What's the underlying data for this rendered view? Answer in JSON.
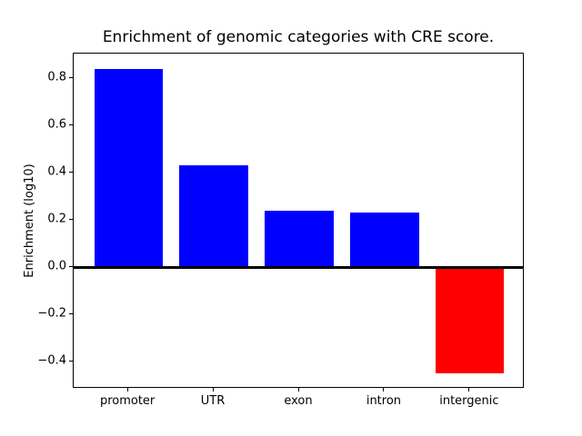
{
  "figure": {
    "background": "#ffffff",
    "text_color": "#000000"
  },
  "chart_data": {
    "type": "bar",
    "title": "Enrichment of genomic categories with CRE score.",
    "xlabel": "",
    "ylabel": "Enrichment (log10)",
    "categories": [
      "promoter",
      "UTR",
      "exon",
      "intron",
      "intergenic"
    ],
    "values": [
      0.84,
      0.43,
      0.24,
      0.23,
      -0.45
    ],
    "bar_colors": [
      "#0000ff",
      "#0000ff",
      "#0000ff",
      "#0000ff",
      "#ff0000"
    ],
    "positive_color": "#0000ff",
    "negative_color": "#ff0000",
    "bar_width": 0.8,
    "ylim": [
      -0.515,
      0.905
    ],
    "xlim": [
      -0.64,
      4.64
    ],
    "yticks": [
      {
        "value": 0.8,
        "label": "0.8"
      },
      {
        "value": 0.6,
        "label": "0.6"
      },
      {
        "value": 0.4,
        "label": "0.4"
      },
      {
        "value": 0.2,
        "label": "0.2"
      },
      {
        "value": 0.0,
        "label": "0.0"
      },
      {
        "value": -0.2,
        "label": "−0.2"
      },
      {
        "value": -0.4,
        "label": "−0.4"
      }
    ],
    "zero_line": {
      "show": true,
      "color": "#000000"
    },
    "grid": false,
    "legend": null,
    "axes_box_color": "#000000"
  }
}
